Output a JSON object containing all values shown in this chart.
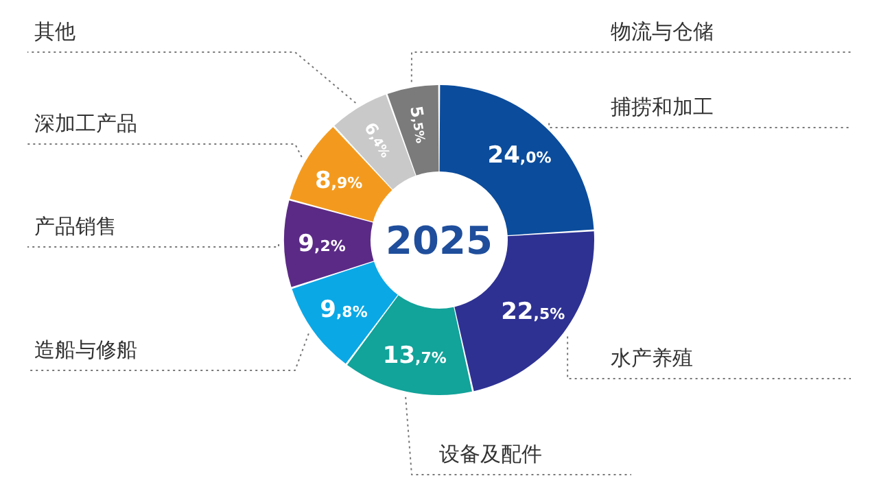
{
  "chart_data": {
    "type": "donut",
    "title": "2025",
    "categories": [
      "捕捞和加工",
      "水产养殖",
      "设备及配件",
      "造船与修船",
      "产品销售",
      "深加工产品",
      "其他",
      "物流与仓储"
    ],
    "values": [
      24.0,
      22.5,
      13.7,
      9.8,
      9.2,
      8.9,
      6.4,
      5.5
    ],
    "colors": [
      "#0b4c9c",
      "#2e3192",
      "#12a39a",
      "#0ba8e6",
      "#5b2a86",
      "#f39a1e",
      "#c9c9c9",
      "#7b7b7b"
    ],
    "value_labels": [
      "24,0%",
      "22,5%",
      "13,7%",
      "9,8%",
      "9,2%",
      "8,9%",
      "6,4%",
      "5,5%"
    ],
    "legend": false
  }
}
